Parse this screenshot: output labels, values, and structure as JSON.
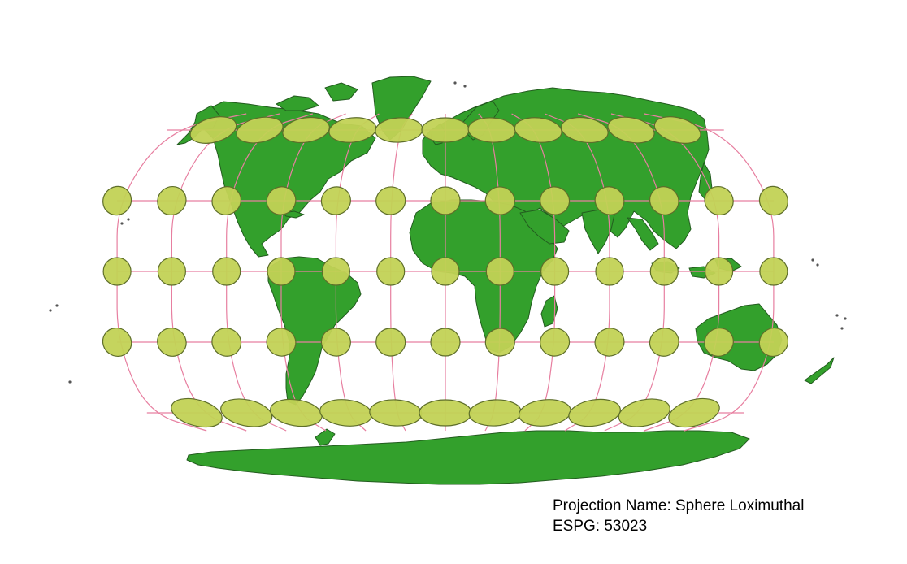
{
  "map": {
    "projection_name_line": "Projection Name: Sphere Loximuthal",
    "epsg_line": "ESPG: 53023",
    "layers": [
      "land",
      "graticule",
      "tissot-indicatrix"
    ],
    "colors": {
      "background": "#ffffff",
      "land_fill": "#33a02c",
      "land_stroke": "#235c1f",
      "graticule": "#e77fa0",
      "indicatrix_fill": "#c2d255",
      "indicatrix_stroke": "#5e6e2a"
    },
    "graticule_parallels_deg": [
      60,
      30,
      0,
      -30,
      -60
    ],
    "graticule_meridians_deg": [
      -150,
      -120,
      -90,
      -60,
      -30,
      0,
      30,
      60,
      90,
      120,
      150
    ]
  }
}
